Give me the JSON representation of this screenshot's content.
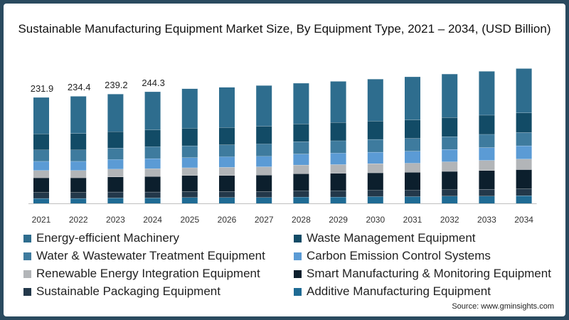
{
  "chart_data": {
    "type": "bar",
    "stacked": true,
    "title": "Sustainable Manufacturing Equipment Market Size, By Equipment Type, 2021 – 2034, (USD Billion)",
    "categories": [
      "2021",
      "2022",
      "2023",
      "2024",
      "2025",
      "2026",
      "2027",
      "2028",
      "2029",
      "2030",
      "2031",
      "2032",
      "2033",
      "2034"
    ],
    "totals": [
      231.9,
      234.4,
      239.2,
      244.3,
      251.0,
      254.0,
      258.0,
      263.0,
      267.0,
      272.0,
      277.0,
      283.0,
      289.0,
      295.0
    ],
    "total_labels": [
      "231.9",
      "234.4",
      "239.2",
      "244.3"
    ],
    "series": [
      {
        "name": "Additive Manufacturing Equipment",
        "color": "#1f6b94",
        "values": [
          11,
          11,
          12,
          12,
          13,
          13,
          13,
          14,
          14,
          15,
          15,
          16,
          16,
          17
        ]
      },
      {
        "name": "Sustainable Packaging Equipment",
        "color": "#23384a",
        "values": [
          13,
          13,
          13,
          13,
          13,
          13,
          13,
          14,
          14,
          14,
          14,
          14,
          15,
          15
        ]
      },
      {
        "name": "Smart Manufacturing & Monitoring Equipment",
        "color": "#0c1f2d",
        "values": [
          32,
          32,
          33,
          34,
          35,
          35,
          36,
          37,
          38,
          38,
          39,
          40,
          41,
          42
        ]
      },
      {
        "name": "Renewable Energy Integration Equipment",
        "color": "#b2b5b8",
        "values": [
          16,
          16,
          17,
          17,
          17,
          18,
          18,
          19,
          19,
          20,
          20,
          21,
          22,
          23
        ]
      },
      {
        "name": "Carbon Emission Control Systems",
        "color": "#5b9bd5",
        "values": [
          20,
          20,
          21,
          22,
          22,
          23,
          23,
          24,
          25,
          25,
          26,
          27,
          28,
          29
        ]
      },
      {
        "name": "Water & Wastewater Treatment Equipment",
        "color": "#3e7b9e",
        "values": [
          25,
          25,
          25,
          26,
          26,
          26,
          27,
          27,
          27,
          28,
          28,
          28,
          29,
          29
        ]
      },
      {
        "name": "Waste Management Equipment",
        "color": "#124b66",
        "values": [
          35,
          36,
          36,
          37,
          38,
          38,
          39,
          39,
          40,
          40,
          41,
          42,
          42,
          43
        ]
      },
      {
        "name": "Energy-efficient Machinery",
        "color": "#2e6d8e",
        "values": [
          79.9,
          81.4,
          82.2,
          83.3,
          87,
          88,
          89,
          89,
          90,
          92,
          94,
          95,
          96,
          97
        ]
      }
    ],
    "xlabel": "",
    "ylabel": "",
    "ylim": [
      0,
      300
    ],
    "grid": false,
    "legend": "bottom"
  },
  "legend_items": [
    {
      "name": "Energy-efficient Machinery",
      "color": "#2e6d8e"
    },
    {
      "name": "Waste Management Equipment",
      "color": "#124b66"
    },
    {
      "name": "Water & Wastewater Treatment Equipment",
      "color": "#3e7b9e"
    },
    {
      "name": "Carbon Emission Control Systems",
      "color": "#5b9bd5"
    },
    {
      "name": "Renewable Energy Integration Equipment",
      "color": "#b2b5b8"
    },
    {
      "name": "Smart Manufacturing & Monitoring Equipment",
      "color": "#0c1f2d"
    },
    {
      "name": "Sustainable Packaging Equipment",
      "color": "#23384a"
    },
    {
      "name": "Additive Manufacturing Equipment",
      "color": "#1f6b94"
    }
  ],
  "source": "Source: www.gminsights.com",
  "colors": {
    "frame_border": "#2a4a5f",
    "axis": "#bfbfbf"
  }
}
